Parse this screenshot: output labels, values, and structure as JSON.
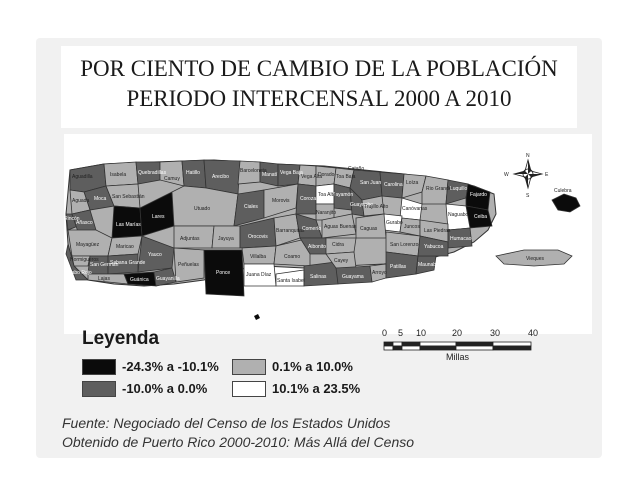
{
  "title": {
    "line1": "POR CIENTO DE CAMBIO DE LA POBLACIÓN",
    "line2": "PERIODO INTERCENSAL 2000 A 2010"
  },
  "legend": {
    "title": "Leyenda",
    "items": [
      {
        "label": "-24.3% a -10.1%",
        "color": "#0b0b0b"
      },
      {
        "label": "-10.0% a 0.0%",
        "color": "#5e5e5e"
      },
      {
        "label": "0.1% a 10.0%",
        "color": "#b0b0b0"
      },
      {
        "label": "10.1% a 23.5%",
        "color": "#ffffff"
      }
    ]
  },
  "scale": {
    "ticks": [
      "0",
      "5",
      "10",
      "20",
      "30",
      "40"
    ],
    "unit": "Millas"
  },
  "compass": {
    "n": "N",
    "s": "S",
    "e": "E",
    "w": "W"
  },
  "map_labels": {
    "aguadilla": "Aguadilla",
    "isabela": "Isabela",
    "quebradillas": "Quebradillas",
    "camuy": "Camuy",
    "hatillo": "Hatillo",
    "arecibo": "Arecibo",
    "barceloneta": "Barceloneta",
    "manati": "Manatí",
    "vega_baja": "Vega Baja",
    "vega_alta": "Vega Alta",
    "dorado": "Dorado",
    "toa_baja": "Toa Baja",
    "catano": "Cataño",
    "san_juan": "San Juan",
    "carolina": "Carolina",
    "loiza": "Loíza",
    "rio_grande": "Rio Grande",
    "luquillo": "Luquillo",
    "fajardo": "Fajardo",
    "ceiba": "Ceiba",
    "naguabo": "Naguabo",
    "humacao": "Humacao",
    "yabucoa": "Yabucoa",
    "maunabo": "Maunabo",
    "patillas": "Patillas",
    "arroyo": "Arroyo",
    "guayama": "Guayama",
    "salinas": "Salinas",
    "santa_isabel": "Santa Isabel",
    "juana_diaz": "Juana Díaz",
    "ponce": "Ponce",
    "penuelas": "Peñuelas",
    "guayanilla": "Guayanilla",
    "yauco": "Yauco",
    "guanica": "Guánica",
    "lajas": "Lajas",
    "cabo_rojo": "Cabo Rojo",
    "san_german": "San Germán",
    "sabana_grande": "Sabana Grande",
    "hormigueros": "Hormigueros",
    "mayaguez": "Mayagüez",
    "maricao": "Maricao",
    "las_marias": "Las Marías",
    "anasco": "Añasco",
    "rincon": "Rincón",
    "aguada": "Aguada",
    "moca": "Moca",
    "san_sebastian": "San Sebastián",
    "lares": "Lares",
    "utuado": "Utuado",
    "adjuntas": "Adjuntas",
    "jayuya": "Jayuya",
    "ciales": "Ciales",
    "morovis": "Morovis",
    "orocovis": "Orocovis",
    "villalba": "Villalba",
    "coamo": "Coamo",
    "barranquitas": "Barranquitas",
    "corozal": "Corozal",
    "naranjito": "Naranjito",
    "comerio": "Comerío",
    "aibonito": "Aibonito",
    "cidra": "Cidra",
    "cayey": "Cayey",
    "aguas_buenas": "Aguas Buenas",
    "caguas": "Caguas",
    "guaynabo": "Guaynabo",
    "bayamon": "Bayamón",
    "toa_alta": "Toa Alta",
    "trujillo_alto": "Trujillo Alto",
    "canovanas": "Canóvanas",
    "gurabo": "Gurabo",
    "juncos": "Juncos",
    "las_piedras": "Las Piedras",
    "san_lorenzo": "San Lorenzo",
    "vieques": "Vieques",
    "culebra": "Culebra"
  },
  "source": {
    "line1": "Fuente: Negociado del Censo de los Estados Unidos",
    "line2": "Obtenido de Puerto Rico 2000-2010: Más Allá del Censo"
  }
}
